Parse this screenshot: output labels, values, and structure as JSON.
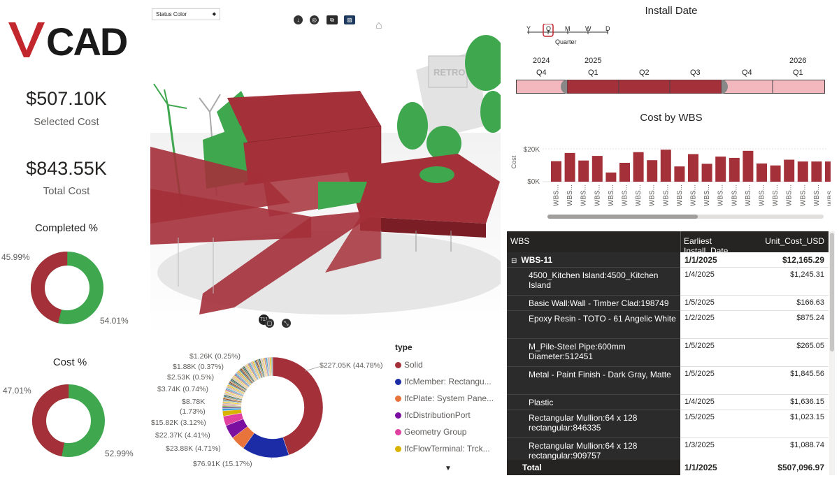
{
  "logo": {
    "text": "VCAD",
    "accent": "#c1272d"
  },
  "kpis": {
    "selected": {
      "value": "$507.10K",
      "label": "Selected Cost"
    },
    "total": {
      "value": "$843.55K",
      "label": "Total Cost"
    }
  },
  "completed": {
    "title": "Completed %",
    "red_pct": "45.99%",
    "green_pct": "54.01%",
    "red_value": 45.99,
    "green_value": 54.01
  },
  "cost_pct": {
    "title": "Cost %",
    "red_pct": "47.01%",
    "green_pct": "52.99%",
    "red_value": 47.01,
    "green_value": 52.99
  },
  "colors": {
    "red": "#a4303a",
    "green": "#3fa84f",
    "timeline_light": "#f2b8be",
    "timeline_dark": "#a4303a",
    "navy": "#1b2ca6",
    "orange": "#e8743b",
    "purple": "#7a0fa0",
    "pink": "#e040a0",
    "olive": "#d8b400"
  },
  "viewer": {
    "status_select": "Status Color",
    "watermark": "RETRO",
    "count_badge": "711",
    "toolbar_icons": [
      "download-icon",
      "target-icon",
      "layers-icon",
      "pattern-icon",
      "home-icon"
    ]
  },
  "timeline": {
    "title": "Install Date",
    "granularity": [
      "Y",
      "Q",
      "M",
      "W",
      "D"
    ],
    "selected_granularity": "Q",
    "granularity_label": "Quarter",
    "years": [
      "2024",
      "2025",
      "2026"
    ],
    "quarters": [
      "Q4",
      "Q1",
      "Q2",
      "Q3",
      "Q4",
      "Q1"
    ],
    "selected_range": [
      "Q1 2025",
      "Q3 2025"
    ]
  },
  "wbs_chart": {
    "title": "Cost by WBS",
    "chart_data": {
      "type": "bar",
      "title": "Cost by WBS",
      "ylabel": "Cost",
      "ytick_labels": [
        "$20K",
        "$0K"
      ],
      "ylim": [
        0,
        22000
      ],
      "categories": [
        "WBS...",
        "WBS...",
        "WBS...",
        "WBS...",
        "WBS...",
        "WBS...",
        "WBS...",
        "WBS...",
        "WBS...",
        "WBS...",
        "WBS...",
        "WBS...",
        "WBS...",
        "WBS...",
        "WBS...",
        "WBS...",
        "WBS...",
        "WBS...",
        "WBS...",
        "WBS...",
        "WBS..."
      ],
      "values": [
        12500,
        17500,
        12900,
        15700,
        5600,
        11500,
        18000,
        13100,
        19500,
        9300,
        16800,
        10900,
        15300,
        14500,
        18800,
        11100,
        9900,
        13400,
        12300,
        12300,
        12300
      ]
    }
  },
  "table": {
    "headers": [
      "WBS",
      "Earliest Install_Date",
      "Unit_Cost_USD"
    ],
    "group": {
      "expander": "⊟",
      "name": "WBS-11",
      "date": "1/1/2025",
      "cost": "$12,165.29"
    },
    "rows": [
      {
        "name": "4500_Kitchen Island:4500_Kitchen Island",
        "date": "1/4/2025",
        "cost": "$1,245.31"
      },
      {
        "name": "Basic Wall:Wall - Timber Clad:198749",
        "date": "1/5/2025",
        "cost": "$166.63"
      },
      {
        "name": "Epoxy Resin - TOTO - 61 Angelic White",
        "date": "1/2/2025",
        "cost": "$875.24"
      },
      {
        "name": "M_Pile-Steel Pipe:600mm Diameter:512451",
        "date": "1/5/2025",
        "cost": "$265.05"
      },
      {
        "name": "Metal - Paint Finish - Dark Gray, Matte",
        "date": "1/5/2025",
        "cost": "$1,845.56"
      },
      {
        "name": "Plastic",
        "date": "1/4/2025",
        "cost": "$1,636.15"
      },
      {
        "name": "Rectangular Mullion:64 x 128 rectangular:846335",
        "date": "1/5/2025",
        "cost": "$1,023.15"
      },
      {
        "name": "Rectangular Mullion:64 x 128 rectangular:909757",
        "date": "1/3/2025",
        "cost": "$1,088.74"
      }
    ],
    "total": {
      "name": "Total",
      "date": "1/1/2025",
      "cost": "$507,096.97"
    }
  },
  "type_donut": {
    "chart_data": {
      "type": "pie",
      "slices": [
        {
          "label": "Solid",
          "value": 227.05,
          "text": "$227.05K (44.78%)",
          "color": "#a4303a"
        },
        {
          "label": "IfcMember: Rectangu...",
          "value": 76.91,
          "text": "$76.91K (15.17%)",
          "color": "#1b2ca6"
        },
        {
          "label": "IfcPlate: System Pane...",
          "value": 23.88,
          "text": "$23.88K (4.71%)",
          "color": "#e8743b"
        },
        {
          "label": "IfcDistributionPort",
          "value": 22.37,
          "text": "$22.37K (4.41%)",
          "color": "#7a0fa0"
        },
        {
          "label": "Geometry Group",
          "value": 15.82,
          "text": "$15.82K (3.12%)",
          "color": "#e040a0"
        },
        {
          "label": "IfcFlowTerminal: Trck...",
          "value": 8.78,
          "text": "$8.78K (1.73%)",
          "color": "#d8b400"
        },
        {
          "label": "",
          "value": 3.74,
          "text": "$3.74K (0.74%)",
          "color": "#3aa0d8"
        },
        {
          "label": "",
          "value": 2.53,
          "text": "$2.53K (0.5%)",
          "color": "#6b4b8f"
        },
        {
          "label": "",
          "value": 1.88,
          "text": "$1.88K (0.37%)",
          "color": "#8ab04a"
        },
        {
          "label": "",
          "value": 1.26,
          "text": "$1.26K (0.25%)",
          "color": "#c0504d"
        }
      ]
    },
    "legend_title": "type",
    "legend": [
      "Solid",
      "IfcMember: Rectangu...",
      "IfcPlate: System Pane...",
      "IfcDistributionPort",
      "Geometry Group",
      "IfcFlowTerminal: Trck..."
    ],
    "label_solid": "$227.05K (44.78%)",
    "label_member": "$76.91K (15.17%)",
    "label_plate": "$23.88K (4.71%)",
    "label_port": "$22.37K (4.41%)",
    "label_geom": "$15.82K (3.12%)",
    "label_flow_a": "$8.78K",
    "label_flow_b": "(1.73%)",
    "label_s7": "$3.74K (0.74%)",
    "label_s8": "$2.53K (0.5%)",
    "label_s9": "$1.88K (0.37%)",
    "label_s10": "$1.26K (0.25%)"
  }
}
